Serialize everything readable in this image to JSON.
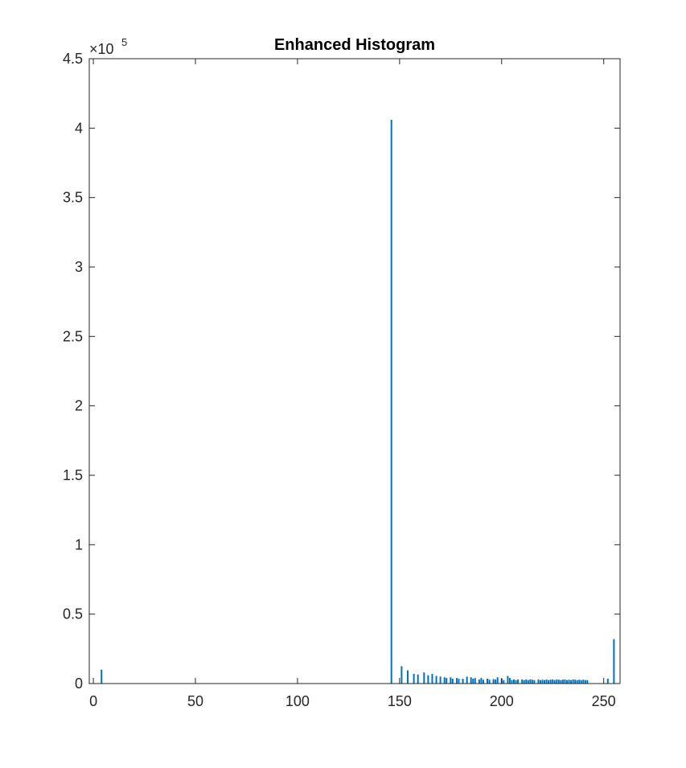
{
  "chart_data": {
    "type": "bar",
    "title": "Enhanced Histogram",
    "xlabel": "",
    "ylabel": "",
    "xlim": [
      -2,
      258
    ],
    "ylim": [
      0,
      450000
    ],
    "xticks": [
      0,
      50,
      100,
      150,
      200,
      250
    ],
    "yticks": [
      0,
      0.5,
      1,
      1.5,
      2,
      2.5,
      3,
      3.5,
      4,
      4.5
    ],
    "ytick_labels": [
      "0",
      "0.5",
      "1",
      "1.5",
      "2",
      "2.5",
      "3",
      "3.5",
      "4",
      "4.5"
    ],
    "y_exponent_label": {
      "base": "×10",
      "power": "5"
    },
    "grid": false,
    "bar_color": "#0072BD",
    "x": [
      4,
      146,
      151,
      154,
      157,
      159,
      162,
      164,
      166,
      168,
      170,
      172,
      173,
      175,
      176,
      178,
      179,
      181,
      183,
      185,
      186,
      187,
      189,
      190,
      191,
      193,
      194,
      196,
      197,
      198,
      200,
      201,
      203,
      204,
      205,
      206,
      207,
      208,
      210,
      211,
      212,
      213,
      214,
      215,
      216,
      218,
      219,
      220,
      221,
      222,
      223,
      224,
      225,
      226,
      227,
      228,
      229,
      230,
      231,
      232,
      233,
      234,
      235,
      236,
      237,
      238,
      239,
      240,
      241,
      242,
      252,
      255
    ],
    "values": [
      10000,
      406000,
      12500,
      9500,
      7000,
      6500,
      8000,
      6000,
      7000,
      5500,
      5000,
      4500,
      4000,
      4500,
      3500,
      4000,
      3500,
      3500,
      5000,
      4500,
      3500,
      4000,
      3000,
      4000,
      2800,
      3500,
      2800,
      3200,
      3000,
      4500,
      3500,
      2500,
      5500,
      4000,
      2500,
      3000,
      2500,
      3000,
      3000,
      2500,
      3000,
      2500,
      3000,
      2800,
      2500,
      3000,
      2500,
      2800,
      2500,
      3000,
      2500,
      2800,
      3000,
      2500,
      3000,
      2800,
      2500,
      2800,
      3000,
      2500,
      2800,
      2500,
      3000,
      2800,
      2500,
      2800,
      2500,
      2800,
      2500,
      2500,
      3500,
      32000
    ]
  }
}
